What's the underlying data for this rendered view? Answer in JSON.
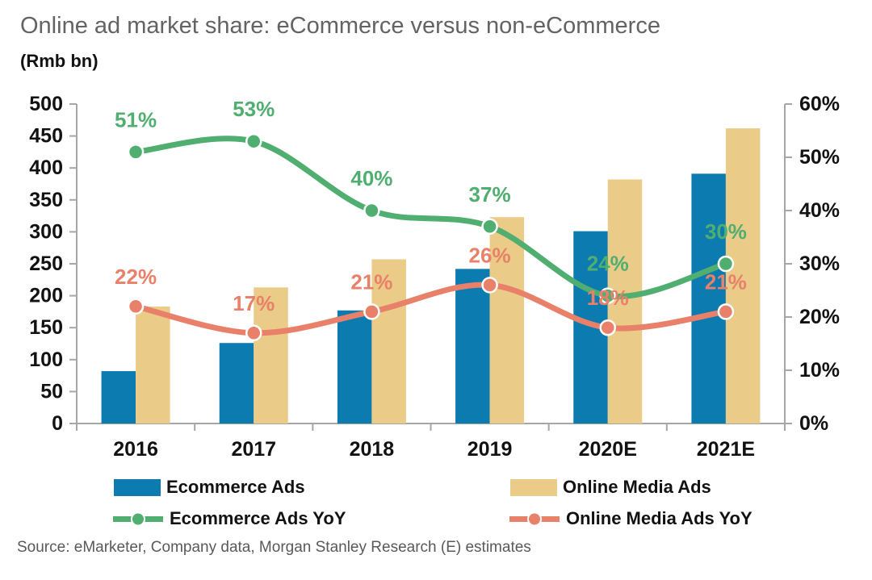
{
  "page_title": "Online ad market share: eCommerce versus non-eCommerce",
  "units_label": "(Rmb bn)",
  "source_note": "Source: eMarketer, Company data, Morgan Stanley Research (E) estimates",
  "colors": {
    "ecommerce_bar": "#0C7CB0",
    "online_media_bar": "#EACB87",
    "ecommerce_yoy_line": "#4FAE70",
    "online_media_yoy_line": "#E8806A",
    "axis_gray": "#A6A6A6",
    "axis_text": "#121212",
    "title_gray": "#636363",
    "source_gray": "#595959"
  },
  "chart_data": {
    "type": "bar",
    "subtype": "combo-bar-line-dual-axis",
    "title": "Online ad market share: eCommerce versus non-eCommerce",
    "categories": [
      "2016",
      "2017",
      "2018",
      "2019",
      "2020E",
      "2021E"
    ],
    "bar_series": [
      {
        "name": "Ecommerce Ads",
        "color": "#0C7CB0",
        "axis": "left",
        "values": [
          82,
          126,
          177,
          242,
          301,
          391
        ]
      },
      {
        "name": "Online Media Ads",
        "color": "#EACB87",
        "axis": "left",
        "values": [
          183,
          213,
          257,
          323,
          382,
          462
        ]
      }
    ],
    "line_series": [
      {
        "name": "Ecommerce Ads YoY",
        "color": "#4FAE70",
        "axis": "right",
        "values": [
          51,
          53,
          40,
          37,
          24,
          30
        ],
        "data_labels": [
          "51%",
          "53%",
          "40%",
          "37%",
          "24%",
          "30%"
        ]
      },
      {
        "name": "Online Media Ads YoY",
        "color": "#E8806A",
        "axis": "right",
        "values": [
          22,
          17,
          21,
          26,
          18,
          21
        ],
        "data_labels": [
          "22%",
          "17%",
          "21%",
          "26%",
          "18%",
          "21%"
        ]
      }
    ],
    "left_axis": {
      "label": "(Rmb bn)",
      "min": 0,
      "max": 500,
      "step": 50,
      "suffix": ""
    },
    "right_axis": {
      "label": "",
      "min": 0,
      "max": 60,
      "step": 10,
      "suffix": "%"
    },
    "grid": false,
    "legend_position": "bottom",
    "xlabel": "",
    "ylabel": "(Rmb bn)"
  }
}
